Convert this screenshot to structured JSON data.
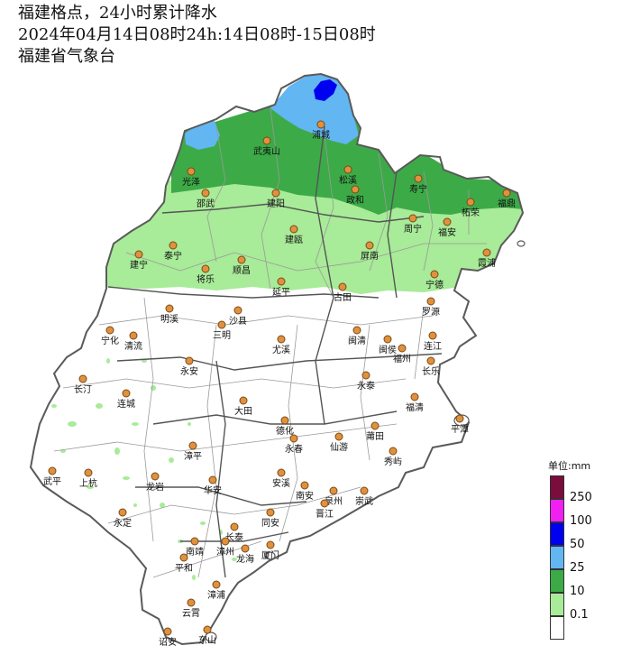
{
  "header": {
    "title": "福建格点，24小时累计降水",
    "period": "2024年04月14日08时24h:14日08时-15日08时",
    "agency": "福建省气象台"
  },
  "legend": {
    "unit": "单位:mm",
    "classes": [
      {
        "label": "250",
        "color": "#7a0d3c"
      },
      {
        "label": "100",
        "color": "#f020f0"
      },
      {
        "label": "50",
        "color": "#0000f0"
      },
      {
        "label": "25",
        "color": "#62b6f2"
      },
      {
        "label": "10",
        "color": "#3daa48"
      },
      {
        "label": "0.1",
        "color": "#a8eb98"
      },
      {
        "label": "",
        "color": "#ffffff"
      }
    ]
  },
  "cities": [
    {
      "name": "浦城"
    },
    {
      "name": "武夷山"
    },
    {
      "name": "光泽"
    },
    {
      "name": "松溪"
    },
    {
      "name": "政和"
    },
    {
      "name": "寿宁"
    },
    {
      "name": "柘荣"
    },
    {
      "name": "福鼎"
    },
    {
      "name": "周宁"
    },
    {
      "name": "福安"
    },
    {
      "name": "邵武"
    },
    {
      "name": "建阳"
    },
    {
      "name": "建瓯"
    },
    {
      "name": "屏南"
    },
    {
      "name": "霞浦"
    },
    {
      "name": "建宁"
    },
    {
      "name": "泰宁"
    },
    {
      "name": "将乐"
    },
    {
      "name": "顺昌"
    },
    {
      "name": "延平"
    },
    {
      "name": "古田"
    },
    {
      "name": "宁德"
    },
    {
      "name": "罗源"
    },
    {
      "name": "明溪"
    },
    {
      "name": "沙县"
    },
    {
      "name": "宁化"
    },
    {
      "name": "清流"
    },
    {
      "name": "三明"
    },
    {
      "name": "尤溪"
    },
    {
      "name": "闽清"
    },
    {
      "name": "闽侯"
    },
    {
      "name": "连江"
    },
    {
      "name": "福州"
    },
    {
      "name": "长乐"
    },
    {
      "name": "永安"
    },
    {
      "name": "长汀"
    },
    {
      "name": "连城"
    },
    {
      "name": "永泰"
    },
    {
      "name": "福清"
    },
    {
      "name": "大田"
    },
    {
      "name": "平潭"
    },
    {
      "name": "德化"
    },
    {
      "name": "永春"
    },
    {
      "name": "仙游"
    },
    {
      "name": "莆田"
    },
    {
      "name": "秀屿"
    },
    {
      "name": "漳平"
    },
    {
      "name": "武平"
    },
    {
      "name": "上杭"
    },
    {
      "name": "龙岩"
    },
    {
      "name": "华安"
    },
    {
      "name": "安溪"
    },
    {
      "name": "南安"
    },
    {
      "name": "泉州"
    },
    {
      "name": "崇武"
    },
    {
      "name": "晋江"
    },
    {
      "name": "永定"
    },
    {
      "name": "长泰"
    },
    {
      "name": "同安"
    },
    {
      "name": "南靖"
    },
    {
      "name": "漳州"
    },
    {
      "name": "龙海"
    },
    {
      "name": "厦门"
    },
    {
      "name": "平和"
    },
    {
      "name": "漳浦"
    },
    {
      "name": "云霄"
    },
    {
      "name": "诏安"
    },
    {
      "name": "东山"
    }
  ]
}
